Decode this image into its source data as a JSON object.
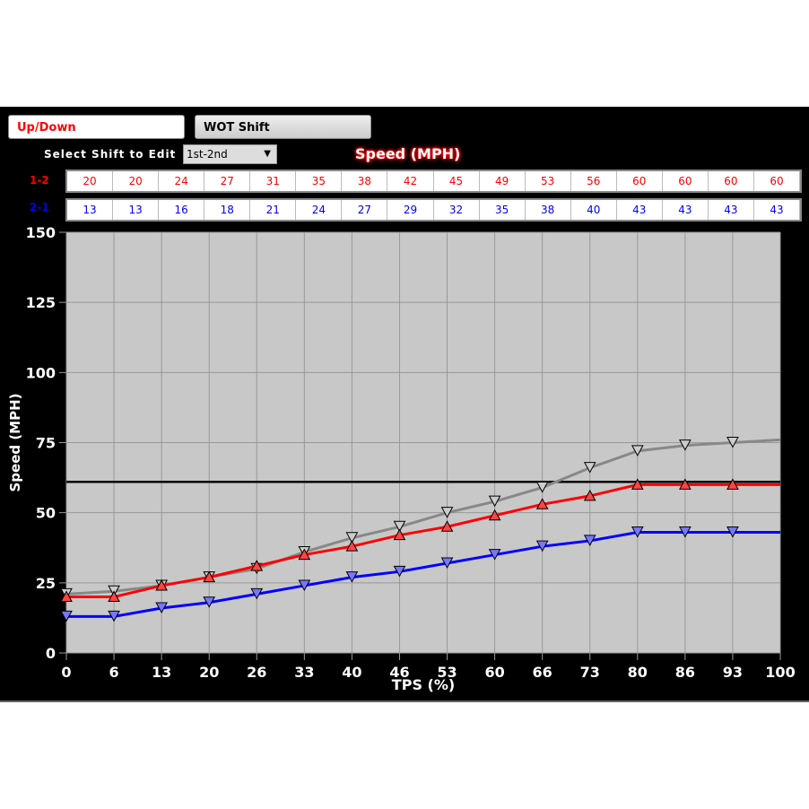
{
  "tabs": [
    "Up/Down",
    "WOT Shift"
  ],
  "select_label": "Select Shift to Edit",
  "select_value": "1st-2nd",
  "title": "Speed (MPH)",
  "rows": [
    {
      "label": "1-2",
      "color": "#ff0000",
      "values": [
        20,
        20,
        24,
        27,
        31,
        35,
        38,
        42,
        45,
        49,
        53,
        56,
        60,
        60,
        60,
        60
      ]
    },
    {
      "label": "2-1",
      "color": "#0000ff",
      "values": [
        13,
        13,
        16,
        18,
        21,
        24,
        27,
        29,
        32,
        35,
        38,
        40,
        43,
        43,
        43,
        43
      ]
    }
  ],
  "chart_data": {
    "type": "line",
    "xlabel": "TPS (%)",
    "ylabel": "Speed (MPH)",
    "x_ticks": [
      "0",
      "6",
      "13",
      "20",
      "26",
      "33",
      "40",
      "46",
      "53",
      "60",
      "66",
      "73",
      "80",
      "86",
      "93",
      "100"
    ],
    "y_ticks": [
      0,
      25,
      50,
      75,
      100,
      125,
      150
    ],
    "ylim": [
      0,
      150
    ],
    "grid": true,
    "series": [
      {
        "name": "1-2",
        "color": "#ff0000",
        "marker": "up",
        "values": [
          20,
          20,
          24,
          27,
          31,
          35,
          38,
          42,
          45,
          49,
          53,
          56,
          60,
          60,
          60,
          60
        ]
      },
      {
        "name": "2-1",
        "color": "#0000ff",
        "marker": "down",
        "values": [
          13,
          13,
          16,
          18,
          21,
          24,
          27,
          29,
          32,
          35,
          38,
          40,
          43,
          43,
          43,
          43
        ]
      },
      {
        "color": "#888888",
        "marker": "down",
        "values": [
          21,
          22,
          24,
          27,
          30,
          36,
          41,
          45,
          50,
          54,
          59,
          66,
          72,
          74,
          75,
          76
        ]
      }
    ],
    "hline": 61
  }
}
